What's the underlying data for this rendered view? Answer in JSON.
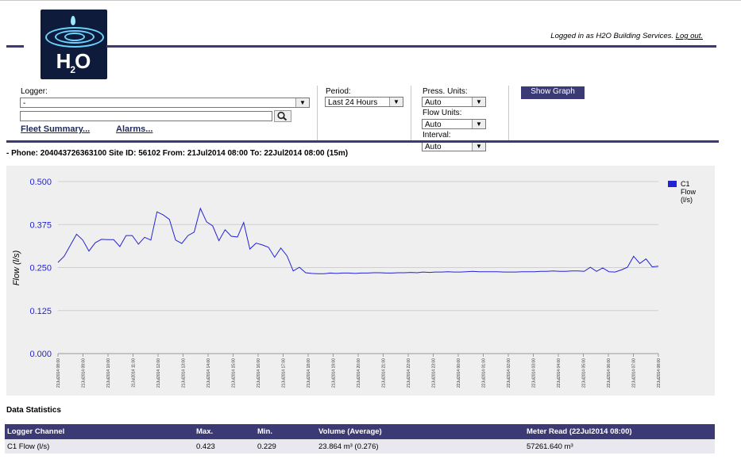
{
  "header": {
    "logo_text": "H2O",
    "login_text": "Logged in as H2O Building Services.",
    "logout_label": "Log out."
  },
  "controls": {
    "logger_label": "Logger:",
    "logger_value": "-",
    "search_value": "",
    "fleet_summary_label": "Fleet Summary...",
    "alarms_label": "Alarms...",
    "period_label": "Period:",
    "period_value": "Last 24 Hours",
    "press_units_label": "Press. Units:",
    "press_units_value": "Auto",
    "flow_units_label": "Flow Units:",
    "flow_units_value": "Auto",
    "interval_label": "Interval:",
    "interval_value": "Auto",
    "show_graph_label": "Show Graph"
  },
  "info_line": "- Phone: 204043726363100 Site ID: 56102 From: 21Jul2014 08:00 To: 22Jul2014 08:00 (15m)",
  "chart_data": {
    "type": "line",
    "ylabel": "Flow (l/s)",
    "ylim": [
      0,
      0.5
    ],
    "yticks": [
      "0.000",
      "0.125",
      "0.250",
      "0.375",
      "0.500"
    ],
    "grid": "horizontal",
    "legend_position": "right",
    "series": [
      {
        "name": "C1 Flow (l/s)",
        "color": "#2323d6",
        "values": [
          0.265,
          0.283,
          0.315,
          0.347,
          0.33,
          0.298,
          0.322,
          0.332,
          0.331,
          0.331,
          0.311,
          0.343,
          0.343,
          0.318,
          0.338,
          0.33,
          0.412,
          0.403,
          0.39,
          0.33,
          0.32,
          0.343,
          0.353,
          0.422,
          0.383,
          0.371,
          0.328,
          0.36,
          0.341,
          0.339,
          0.381,
          0.304,
          0.321,
          0.316,
          0.309,
          0.28,
          0.307,
          0.284,
          0.24,
          0.251,
          0.235,
          0.233,
          0.232,
          0.232,
          0.234,
          0.233,
          0.234,
          0.234,
          0.233,
          0.234,
          0.234,
          0.235,
          0.235,
          0.234,
          0.234,
          0.235,
          0.235,
          0.236,
          0.235,
          0.237,
          0.236,
          0.237,
          0.237,
          0.238,
          0.237,
          0.237,
          0.238,
          0.239,
          0.238,
          0.238,
          0.238,
          0.238,
          0.237,
          0.237,
          0.237,
          0.238,
          0.238,
          0.238,
          0.239,
          0.239,
          0.24,
          0.239,
          0.239,
          0.24,
          0.24,
          0.239,
          0.251,
          0.239,
          0.249,
          0.238,
          0.237,
          0.243,
          0.251,
          0.283,
          0.262,
          0.275,
          0.252,
          0.254
        ]
      }
    ],
    "x_ticks": [
      "21Jul2014 08:00",
      "21Jul2014 09:00",
      "21Jul2014 10:00",
      "21Jul2014 11:00",
      "21Jul2014 12:00",
      "21Jul2014 13:00",
      "21Jul2014 14:00",
      "21Jul2014 15:00",
      "21Jul2014 16:00",
      "21Jul2014 17:00",
      "21Jul2014 18:00",
      "21Jul2014 19:00",
      "21Jul2014 20:00",
      "21Jul2014 21:00",
      "21Jul2014 22:00",
      "21Jul2014 23:00",
      "22Jul2014 00:00",
      "22Jul2014 01:00",
      "22Jul2014 02:00",
      "22Jul2014 03:00",
      "22Jul2014 04:00",
      "22Jul2014 05:00",
      "22Jul2014 06:00",
      "22Jul2014 07:00",
      "22Jul2014 08:00"
    ],
    "legend": {
      "line1": "C1",
      "line2": "Flow",
      "line3": "(l/s)"
    }
  },
  "stats": {
    "title": "Data Statistics",
    "headers": [
      "Logger Channel",
      "Max.",
      "Min.",
      "Volume (Average)",
      "Meter Read  (22Jul2014 08:00)"
    ],
    "rows": [
      [
        "C1 Flow (l/s)",
        "0.423",
        "0.229",
        "23.864 m³ (0.276)",
        "57261.640 m³"
      ]
    ]
  }
}
